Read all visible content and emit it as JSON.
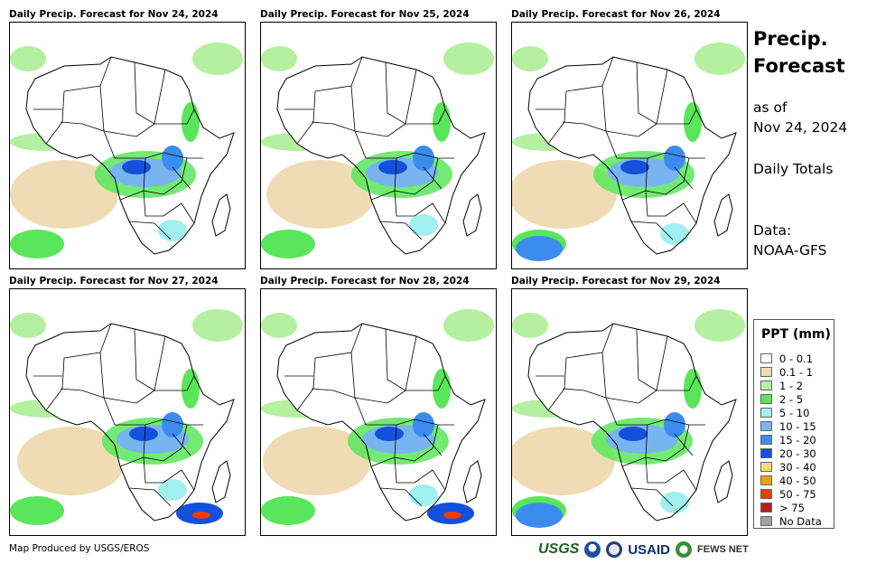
{
  "panels": [
    {
      "title": "Daily Precip. Forecast for Nov 24, 2024"
    },
    {
      "title": "Daily Precip. Forecast for Nov 25, 2024"
    },
    {
      "title": "Daily Precip. Forecast for Nov 26, 2024"
    },
    {
      "title": "Daily Precip. Forecast for Nov 27, 2024"
    },
    {
      "title": "Daily Precip. Forecast for Nov 28, 2024"
    },
    {
      "title": "Daily Precip. Forecast for Nov 29, 2024"
    }
  ],
  "sidebar": {
    "title_line1": "Precip.",
    "title_line2": "Forecast",
    "as_of_label": "as of",
    "as_of_date": "Nov 24, 2024",
    "daily_totals": "Daily Totals",
    "data_label": "Data:",
    "data_source": "NOAA-GFS"
  },
  "legend": {
    "title": "PPT (mm)",
    "items": [
      {
        "label": "0 - 0.1",
        "color": "#ffffff"
      },
      {
        "label": "0.1 - 1",
        "color": "#f0dcb4"
      },
      {
        "label": "1 - 2",
        "color": "#b4f0a0"
      },
      {
        "label": "2 - 5",
        "color": "#5ae65a"
      },
      {
        "label": "5 - 10",
        "color": "#a0f0f0"
      },
      {
        "label": "10 - 15",
        "color": "#78b4f0"
      },
      {
        "label": "15 - 20",
        "color": "#3c8cf0"
      },
      {
        "label": "20 - 30",
        "color": "#1450dc"
      },
      {
        "label": "30 - 40",
        "color": "#f0dc78"
      },
      {
        "label": "40 - 50",
        "color": "#f0a000"
      },
      {
        "label": "50 - 75",
        "color": "#f03c00"
      },
      {
        "label": "> 75",
        "color": "#b41e1e"
      },
      {
        "label": "No Data",
        "color": "#a0a0a0"
      }
    ]
  },
  "footer": {
    "credit": "Map Produced by USGS/EROS",
    "logo_usgs": "USGS",
    "logo_usaid": "USAID",
    "logo_fews": "FEWS NET"
  }
}
